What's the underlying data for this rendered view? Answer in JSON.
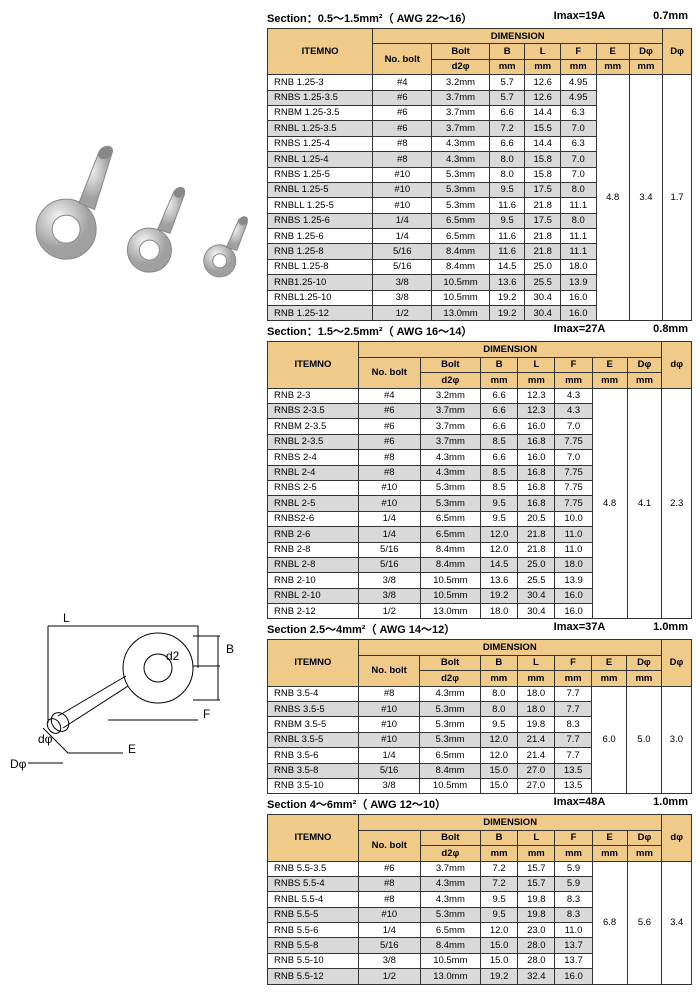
{
  "colors": {
    "header_bg": "#f0ca89",
    "row_alt": "#d9d9d9",
    "border": "#333333"
  },
  "columns": {
    "item": "ITEMNO",
    "dimension": "DIMENSION",
    "no_bolt": "No. bolt",
    "bolt": "Bolt",
    "d2": "d2φ",
    "B": "B",
    "B_u": "mm",
    "L": "L",
    "L_u": "mm",
    "F": "F",
    "F_u": "mm",
    "E": "E",
    "E_u": "mm",
    "Dphi": "Dφ",
    "Dphi_u": "mm",
    "Dcol": "Dφ",
    "dcol": "dφ"
  },
  "sections": [
    {
      "title": "Section：0.5～1.5mm²（ AWG  22～16）",
      "imax": "Imax=19A",
      "thick": "0.7mm",
      "lastcol": "Dφ",
      "E": "4.8",
      "Dphi": "3.4",
      "last": "1.7",
      "rows": [
        {
          "i": "RNB 1.25-3",
          "b": "#4",
          "d2": "3.2mm",
          "B": "5.7",
          "L": "12.6",
          "F": "4.95"
        },
        {
          "i": "RNBS 1.25-3.5",
          "b": "#6",
          "d2": "3.7mm",
          "B": "5.7",
          "L": "12.6",
          "F": "4.95"
        },
        {
          "i": "RNBM 1.25-3.5",
          "b": "#6",
          "d2": "3.7mm",
          "B": "6.6",
          "L": "14.4",
          "F": "6.3"
        },
        {
          "i": "RNBL 1.25-3.5",
          "b": "#6",
          "d2": "3.7mm",
          "B": "7.2",
          "L": "15.5",
          "F": "7.0"
        },
        {
          "i": "RNBS 1.25-4",
          "b": "#8",
          "d2": "4.3mm",
          "B": "6.6",
          "L": "14.4",
          "F": "6.3"
        },
        {
          "i": "RNBL 1.25-4",
          "b": "#8",
          "d2": "4.3mm",
          "B": "8.0",
          "L": "15.8",
          "F": "7.0"
        },
        {
          "i": "RNBS 1.25-5",
          "b": "#10",
          "d2": "5.3mm",
          "B": "8.0",
          "L": "15.8",
          "F": "7.0"
        },
        {
          "i": "RNBL 1.25-5",
          "b": "#10",
          "d2": "5.3mm",
          "B": "9.5",
          "L": "17.5",
          "F": "8.0"
        },
        {
          "i": "RNBLL 1.25-5",
          "b": "#10",
          "d2": "5.3mm",
          "B": "11.6",
          "L": "21.8",
          "F": "11.1"
        },
        {
          "i": "RNBS 1.25-6",
          "b": "1/4",
          "d2": "6.5mm",
          "B": "9.5",
          "L": "17.5",
          "F": "8.0"
        },
        {
          "i": "RNB 1.25-6",
          "b": "1/4",
          "d2": "6.5mm",
          "B": "11.6",
          "L": "21.8",
          "F": "11.1"
        },
        {
          "i": "RNB 1.25-8",
          "b": "5/16",
          "d2": "8.4mm",
          "B": "11.6",
          "L": "21.8",
          "F": "11.1"
        },
        {
          "i": "RNBL 1.25-8",
          "b": "5/16",
          "d2": "8.4mm",
          "B": "14.5",
          "L": "25.0",
          "F": "18.0"
        },
        {
          "i": "RNB1.25-10",
          "b": "3/8",
          "d2": "10.5mm",
          "B": "13.6",
          "L": "25.5",
          "F": "13.9"
        },
        {
          "i": "RNBL1.25-10",
          "b": "3/8",
          "d2": "10.5mm",
          "B": "19.2",
          "L": "30.4",
          "F": "16.0"
        },
        {
          "i": "RNB 1.25-12",
          "b": "1/2",
          "d2": "13.0mm",
          "B": "19.2",
          "L": "30.4",
          "F": "16.0"
        }
      ]
    },
    {
      "title": "Section：1.5～2.5mm²（ AWG  16～14）",
      "imax": "Imax=27A",
      "thick": "0.8mm",
      "lastcol": "dφ",
      "E": "4.8",
      "Dphi": "4.1",
      "last": "2.3",
      "rows": [
        {
          "i": "RNB 2-3",
          "b": "#4",
          "d2": "3.2mm",
          "B": "6.6",
          "L": "12.3",
          "F": "4.3"
        },
        {
          "i": "RNBS 2-3.5",
          "b": "#6",
          "d2": "3.7mm",
          "B": "6.6",
          "L": "12.3",
          "F": "4.3"
        },
        {
          "i": "RNBM 2-3.5",
          "b": "#6",
          "d2": "3.7mm",
          "B": "6.6",
          "L": "16.0",
          "F": "7.0"
        },
        {
          "i": "RNBL 2-3.5",
          "b": "#6",
          "d2": "3.7mm",
          "B": "8.5",
          "L": "16.8",
          "F": "7.75"
        },
        {
          "i": "RNBS 2-4",
          "b": "#8",
          "d2": "4.3mm",
          "B": "6.6",
          "L": "16.0",
          "F": "7.0"
        },
        {
          "i": "RNBL 2-4",
          "b": "#8",
          "d2": "4.3mm",
          "B": "8.5",
          "L": "16.8",
          "F": "7.75"
        },
        {
          "i": "RNBS 2-5",
          "b": "#10",
          "d2": "5.3mm",
          "B": "8.5",
          "L": "16.8",
          "F": "7.75"
        },
        {
          "i": "RNBL 2-5",
          "b": "#10",
          "d2": "5.3mm",
          "B": "9.5",
          "L": "16.8",
          "F": "7.75"
        },
        {
          "i": "RNBS2-6",
          "b": "1/4",
          "d2": "6.5mm",
          "B": "9.5",
          "L": "20.5",
          "F": "10.0"
        },
        {
          "i": "RNB 2-6",
          "b": "1/4",
          "d2": "6.5mm",
          "B": "12.0",
          "L": "21.8",
          "F": "11.0"
        },
        {
          "i": "RNB 2-8",
          "b": "5/16",
          "d2": "8.4mm",
          "B": "12.0",
          "L": "21.8",
          "F": "11.0"
        },
        {
          "i": "RNBL 2-8",
          "b": "5/16",
          "d2": "8.4mm",
          "B": "14.5",
          "L": "25.0",
          "F": "18.0"
        },
        {
          "i": "RNB 2-10",
          "b": "3/8",
          "d2": "10.5mm",
          "B": "13.6",
          "L": "25.5",
          "F": "13.9"
        },
        {
          "i": "RNBL 2-10",
          "b": "3/8",
          "d2": "10.5mm",
          "B": "19.2",
          "L": "30.4",
          "F": "16.0"
        },
        {
          "i": "RNB 2-12",
          "b": "1/2",
          "d2": "13.0mm",
          "B": "18.0",
          "L": "30.4",
          "F": "16.0"
        }
      ]
    },
    {
      "title": "Section 2.5～4mm²（ AWG  14～12）",
      "imax": "Imax=37A",
      "thick": "1.0mm",
      "lastcol": "Dφ",
      "E": "6.0",
      "Dphi": "5.0",
      "last": "3.0",
      "rows": [
        {
          "i": "RNB 3.5-4",
          "b": "#8",
          "d2": "4.3mm",
          "B": "8.0",
          "L": "18.0",
          "F": "7.7"
        },
        {
          "i": "RNBS 3.5-5",
          "b": "#10",
          "d2": "5.3mm",
          "B": "8.0",
          "L": "18.0",
          "F": "7.7"
        },
        {
          "i": "RNBM 3.5-5",
          "b": "#10",
          "d2": "5.3mm",
          "B": "9.5",
          "L": "19.8",
          "F": "8.3"
        },
        {
          "i": "RNBL 3.5-5",
          "b": "#10",
          "d2": "5.3mm",
          "B": "12.0",
          "L": "21.4",
          "F": "7.7"
        },
        {
          "i": "RNB 3.5-6",
          "b": "1/4",
          "d2": "6.5mm",
          "B": "12.0",
          "L": "21.4",
          "F": "7.7"
        },
        {
          "i": "RNB 3.5-8",
          "b": "5/16",
          "d2": "8.4mm",
          "B": "15.0",
          "L": "27.0",
          "F": "13.5"
        },
        {
          "i": "RNB 3.5-10",
          "b": "3/8",
          "d2": "10.5mm",
          "B": "15.0",
          "L": "27.0",
          "F": "13.5"
        }
      ]
    },
    {
      "title": "Section 4～6mm²（ AWG  12～10）",
      "imax": "Imax=48A",
      "thick": "1.0mm",
      "lastcol": "dφ",
      "E": "6.8",
      "Dphi": "5.6",
      "last": "3.4",
      "rows": [
        {
          "i": "RNB 5.5-3.5",
          "b": "#6",
          "d2": "3.7mm",
          "B": "7.2",
          "L": "15.7",
          "F": "5.9"
        },
        {
          "i": "RNBS 5.5-4",
          "b": "#8",
          "d2": "4.3mm",
          "B": "7.2",
          "L": "15.7",
          "F": "5.9"
        },
        {
          "i": "RNBL 5.5-4",
          "b": "#8",
          "d2": "4.3mm",
          "B": "9.5",
          "L": "19.8",
          "F": "8.3"
        },
        {
          "i": "RNB 5.5-5",
          "b": "#10",
          "d2": "5.3mm",
          "B": "9.5",
          "L": "19.8",
          "F": "8.3"
        },
        {
          "i": "RNB 5.5-6",
          "b": "1/4",
          "d2": "6.5mm",
          "B": "12.0",
          "L": "23.0",
          "F": "11.0"
        },
        {
          "i": "RNB 5.5-8",
          "b": "5/16",
          "d2": "8.4mm",
          "B": "15.0",
          "L": "28.0",
          "F": "13.7"
        },
        {
          "i": "RNB 5.5-10",
          "b": "3/8",
          "d2": "10.5mm",
          "B": "15.0",
          "L": "28.0",
          "F": "13.7"
        },
        {
          "i": "RNB 5.5-12",
          "b": "1/2",
          "d2": "13.0mm",
          "B": "19.2",
          "L": "32.4",
          "F": "16.0"
        }
      ]
    }
  ],
  "diagram_labels": {
    "L": "L",
    "B": "B",
    "F": "F",
    "E": "E",
    "Dphi": "Dφ",
    "dphi": "dφ",
    "d2": "d2"
  }
}
